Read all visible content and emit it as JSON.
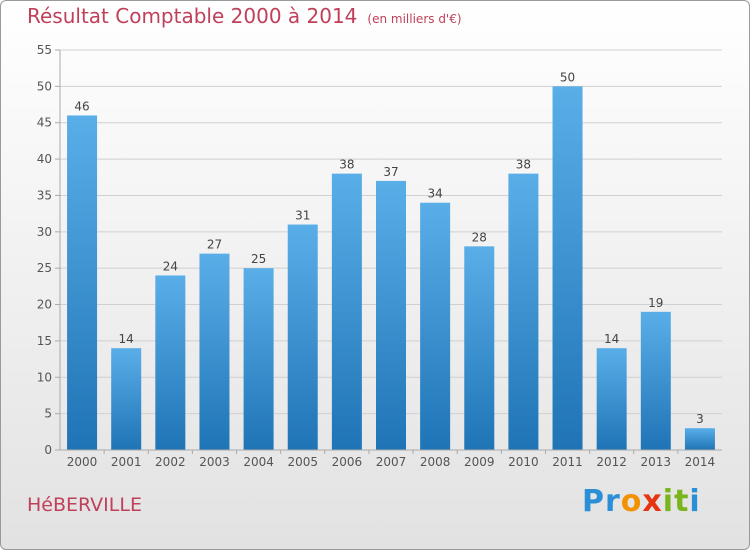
{
  "chart_data": {
    "type": "bar",
    "title": "Résultat Comptable 2000 à 2014",
    "subtitle": "(en milliers d'€)",
    "categories": [
      "2000",
      "2001",
      "2002",
      "2003",
      "2004",
      "2005",
      "2006",
      "2007",
      "2008",
      "2009",
      "2010",
      "2011",
      "2012",
      "2013",
      "2014"
    ],
    "values": [
      46,
      14,
      24,
      27,
      25,
      31,
      38,
      37,
      34,
      28,
      38,
      50,
      14,
      19,
      3
    ],
    "ylim": [
      0,
      55
    ],
    "yticks": [
      0,
      5,
      10,
      15,
      20,
      25,
      30,
      35,
      40,
      45,
      50,
      55
    ],
    "grid": true,
    "xlabel": "",
    "ylabel": ""
  },
  "place": "HéBERVILLE",
  "logo": {
    "letters": [
      "P",
      "r",
      "o",
      "x",
      "i",
      "t",
      "i"
    ],
    "colors": [
      "#2a8fd6",
      "#2a8fd6",
      "#f39200",
      "#e63312",
      "#7ab51d",
      "#7ab51d",
      "#2a8fd6"
    ]
  },
  "colors": {
    "bar_top": "#5aaee8",
    "bar_bottom": "#1f74b6",
    "title": "#c0405a"
  }
}
